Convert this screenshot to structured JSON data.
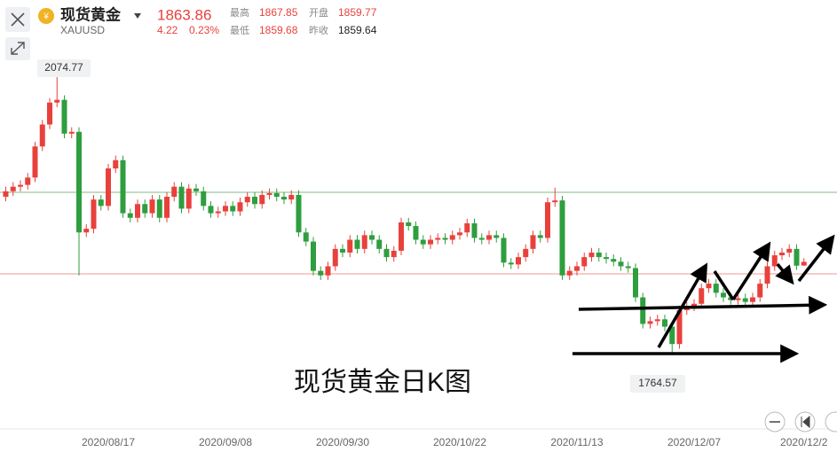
{
  "header": {
    "name": "现货黄金",
    "symbol": "XAUUSD",
    "price": 1863.86,
    "change": 4.22,
    "change_pct": {
      "value": 0.23,
      "label": "0.23%"
    },
    "high_label": "最高",
    "high": 1867.85,
    "open_label": "开盘",
    "open": 1859.77,
    "low_label": "最低",
    "low": 1859.68,
    "prev_close_label": "昨收",
    "prev_close": 1859.64
  },
  "chart_data": {
    "type": "candlestick",
    "annotation": "现货黄金日K图",
    "up_color": "#e8413c",
    "down_color": "#2e9e3e",
    "ylim": [
      1685,
      2092
    ],
    "categories": [
      null,
      null,
      null,
      null,
      null,
      null,
      null,
      null,
      null,
      null,
      null,
      null,
      null,
      null,
      "2020/08/17",
      null,
      null,
      null,
      null,
      null,
      null,
      null,
      null,
      null,
      null,
      null,
      null,
      null,
      null,
      null,
      "2020/09/08",
      null,
      null,
      null,
      null,
      null,
      null,
      null,
      null,
      null,
      null,
      null,
      null,
      null,
      null,
      null,
      "2020/09/30",
      null,
      null,
      null,
      null,
      null,
      null,
      null,
      null,
      null,
      null,
      null,
      null,
      null,
      null,
      null,
      "2020/10/22",
      null,
      null,
      null,
      null,
      null,
      null,
      null,
      null,
      null,
      null,
      null,
      null,
      null,
      null,
      null,
      "2020/11/13",
      null,
      null,
      null,
      null,
      null,
      null,
      null,
      null,
      null,
      null,
      null,
      null,
      null,
      null,
      null,
      "2020/12/07",
      null,
      null,
      null,
      null,
      null,
      null,
      null,
      null,
      null,
      null,
      null,
      null,
      null,
      null,
      "2020/12/2"
    ],
    "open": [
      1935,
      1941,
      1946,
      1948,
      1956,
      1990,
      2014,
      2038,
      2041,
      2004,
      2006,
      1896,
      1900,
      1932,
      1925,
      1966,
      1975,
      1917,
      1912,
      1927,
      1917,
      1932,
      1912,
      1935,
      1946,
      1922,
      1944,
      1941,
      1925,
      1917,
      1919,
      1925,
      1919,
      1929,
      1935,
      1927,
      1937,
      1939,
      1935,
      1932,
      1937,
      1896,
      1886,
      1854,
      1849,
      1859,
      1878,
      1874,
      1888,
      1878,
      1893,
      1888,
      1878,
      1869,
      1876,
      1907,
      1903,
      1888,
      1883,
      1888,
      1890,
      1888,
      1893,
      1896,
      1906,
      1890,
      1888,
      1893,
      1890,
      1863,
      1861,
      1869,
      1878,
      1893,
      1890,
      1929,
      1931,
      1849,
      1854,
      1859,
      1869,
      1874,
      1869,
      1867,
      1864,
      1859,
      1857,
      1825,
      1796,
      1799,
      1801,
      1793,
      1774,
      1811,
      1815,
      1818,
      1835,
      1840,
      1830,
      1825,
      1822,
      1824,
      1820,
      1825,
      1840,
      1859,
      1871,
      1874,
      1878,
      1859.77
    ],
    "high": [
      1946,
      1951,
      1953,
      1961,
      1995,
      2019,
      2043,
      2074.77,
      2046,
      2011,
      2011,
      1905,
      1937,
      1937,
      1971,
      1980,
      1980,
      1922,
      1932,
      1932,
      1937,
      1937,
      1940,
      1951,
      1951,
      1949,
      1949,
      1946,
      1930,
      1924,
      1930,
      1930,
      1934,
      1940,
      1940,
      1942,
      1944,
      1944,
      1940,
      1942,
      1942,
      1901,
      1891,
      1859,
      1864,
      1883,
      1883,
      1893,
      1893,
      1898,
      1898,
      1893,
      1883,
      1881,
      1912,
      1912,
      1908,
      1893,
      1893,
      1895,
      1895,
      1898,
      1901,
      1911,
      1911,
      1895,
      1898,
      1898,
      1895,
      1868,
      1874,
      1883,
      1898,
      1898,
      1934,
      1945,
      1936,
      1859,
      1864,
      1874,
      1879,
      1879,
      1874,
      1872,
      1869,
      1864,
      1862,
      1830,
      1804,
      1806,
      1806,
      1798,
      1816,
      1820,
      1823,
      1840,
      1845,
      1845,
      1835,
      1830,
      1829,
      1829,
      1830,
      1845,
      1864,
      1876,
      1879,
      1883,
      1883,
      1867.85
    ],
    "low": [
      1930,
      1936,
      1941,
      1943,
      1951,
      1985,
      2009,
      2033,
      1999,
      1999,
      1849,
      1891,
      1895,
      1920,
      1920,
      1961,
      1912,
      1907,
      1907,
      1912,
      1912,
      1907,
      1907,
      1930,
      1917,
      1917,
      1936,
      1920,
      1912,
      1912,
      1914,
      1914,
      1914,
      1924,
      1922,
      1922,
      1932,
      1930,
      1927,
      1927,
      1891,
      1881,
      1849,
      1844,
      1844,
      1854,
      1869,
      1869,
      1873,
      1873,
      1883,
      1873,
      1864,
      1864,
      1871,
      1898,
      1883,
      1878,
      1878,
      1883,
      1883,
      1883,
      1888,
      1891,
      1885,
      1883,
      1883,
      1885,
      1858,
      1856,
      1856,
      1864,
      1873,
      1885,
      1885,
      1924,
      1844,
      1844,
      1849,
      1854,
      1864,
      1864,
      1862,
      1859,
      1854,
      1852,
      1820,
      1791,
      1791,
      1794,
      1788,
      1764.57,
      1769,
      1806,
      1810,
      1813,
      1830,
      1825,
      1820,
      1817,
      1817,
      1815,
      1815,
      1820,
      1835,
      1854,
      1866,
      1869,
      1855,
      1859.68
    ],
    "close": [
      1941,
      1946,
      1948,
      1956,
      1990,
      2014,
      2038,
      2041,
      2004,
      2006,
      1896,
      1900,
      1932,
      1925,
      1966,
      1975,
      1917,
      1912,
      1927,
      1917,
      1932,
      1912,
      1935,
      1946,
      1922,
      1944,
      1941,
      1925,
      1917,
      1919,
      1925,
      1919,
      1929,
      1935,
      1927,
      1937,
      1939,
      1935,
      1932,
      1937,
      1896,
      1886,
      1854,
      1849,
      1859,
      1878,
      1874,
      1888,
      1878,
      1893,
      1888,
      1878,
      1869,
      1876,
      1907,
      1903,
      1888,
      1883,
      1888,
      1890,
      1888,
      1893,
      1896,
      1906,
      1890,
      1888,
      1893,
      1890,
      1863,
      1861,
      1869,
      1878,
      1893,
      1890,
      1929,
      1931,
      1849,
      1854,
      1859,
      1869,
      1874,
      1869,
      1867,
      1864,
      1859,
      1857,
      1825,
      1796,
      1799,
      1801,
      1793,
      1774,
      1811,
      1815,
      1818,
      1835,
      1840,
      1830,
      1825,
      1822,
      1824,
      1820,
      1825,
      1840,
      1859,
      1871,
      1874,
      1878,
      1859.64,
      1863.86
    ]
  }
}
